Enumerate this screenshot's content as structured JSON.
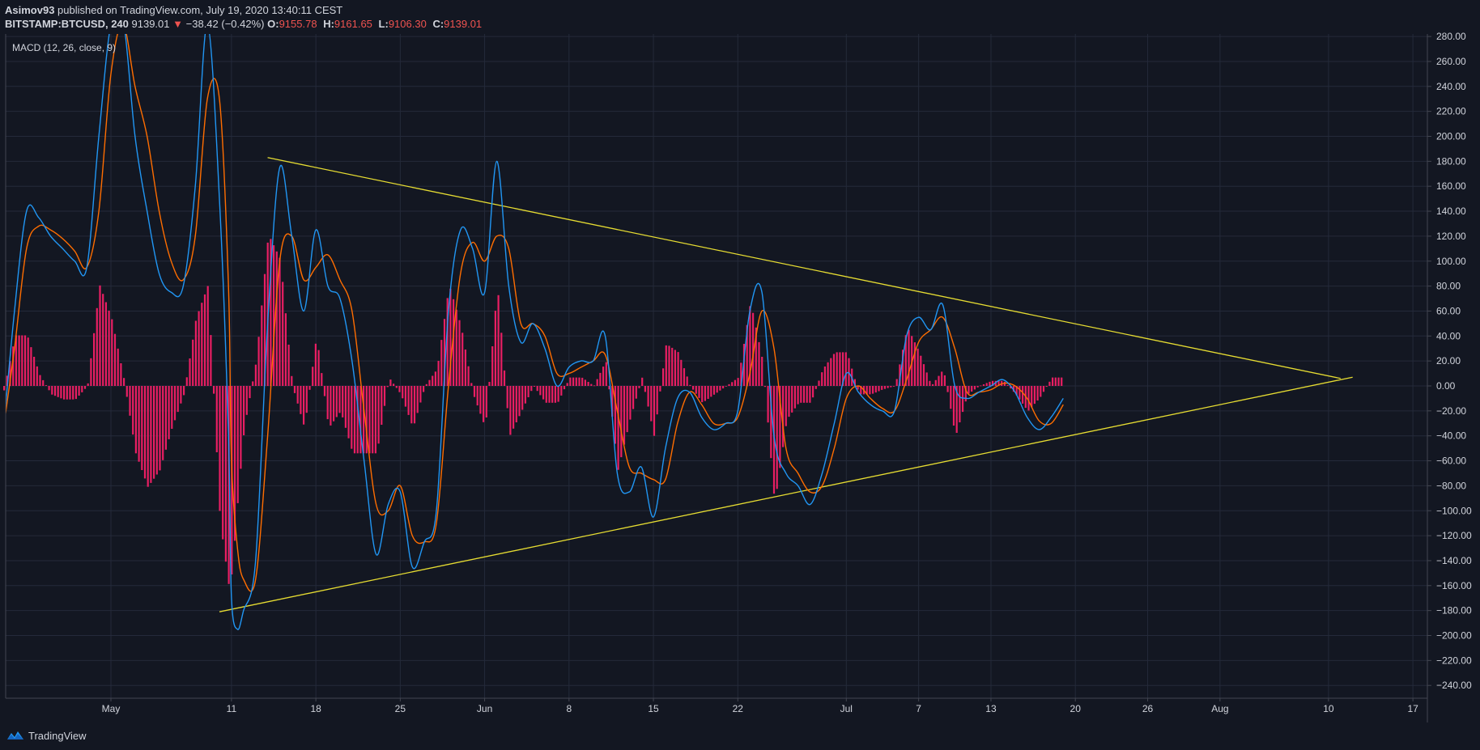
{
  "header": {
    "author": "Asimov93",
    "published": "published on TradingView.com, July 19, 2020 13:40:11 CEST",
    "symbol": "BITSTAMP:BTCUSD, 240",
    "price": "9139.01",
    "change": "−",
    "change_text": "−38.42 (−0.42%)",
    "down_arrow": "▼",
    "o_label": "O:",
    "o_value": "9155.78",
    "h_label": "H:",
    "h_value": "9161.65",
    "l_label": "L:",
    "l_value": "9106.30",
    "c_label": "C:",
    "c_value": "9139.01"
  },
  "indicator": {
    "label": "MACD (12, 26, close, 9)"
  },
  "footer": {
    "brand": "TradingView",
    "logo_icon": "tradingview-logo-icon"
  },
  "colors": {
    "background": "#131722",
    "grid": "#242a3a",
    "macd": "#2196f3",
    "signal": "#ff6d00",
    "histogram": "#e91e63",
    "trendline": "#e6dc32",
    "axis_text": "#d1d4dc"
  },
  "chart_data": {
    "type": "line",
    "title": "MACD (12, 26, close, 9)",
    "xlabel": "",
    "ylabel": "",
    "ylim": [
      -250,
      285
    ],
    "grid": true,
    "x_ticks": [
      {
        "label": "May",
        "date": "2020-05-01"
      },
      {
        "label": "11",
        "date": "2020-05-11"
      },
      {
        "label": "18",
        "date": "2020-05-18"
      },
      {
        "label": "25",
        "date": "2020-05-25"
      },
      {
        "label": "Jun",
        "date": "2020-06-01"
      },
      {
        "label": "8",
        "date": "2020-06-08"
      },
      {
        "label": "15",
        "date": "2020-06-15"
      },
      {
        "label": "22",
        "date": "2020-06-22"
      },
      {
        "label": "Jul",
        "date": "2020-07-01"
      },
      {
        "label": "7",
        "date": "2020-07-07"
      },
      {
        "label": "13",
        "date": "2020-07-13"
      },
      {
        "label": "20",
        "date": "2020-07-20"
      },
      {
        "label": "26",
        "date": "2020-07-26"
      },
      {
        "label": "Aug",
        "date": "2020-08-01"
      },
      {
        "label": "10",
        "date": "2020-08-10"
      },
      {
        "label": "17",
        "date": "2020-08-17"
      }
    ],
    "y_ticks": [
      "280.00",
      "260.00",
      "240.00",
      "220.00",
      "200.00",
      "180.00",
      "160.00",
      "140.00",
      "120.00",
      "100.00",
      "80.00",
      "60.00",
      "40.00",
      "20.00",
      "0.00",
      "−20.00",
      "−40.00",
      "−60.00",
      "−80.00",
      "−100.00",
      "−120.00",
      "−140.00",
      "−160.00",
      "−180.00",
      "−200.00",
      "−220.00",
      "−240.00"
    ],
    "series": [
      {
        "key": "macd",
        "points": [
          [
            "2020-04-22",
            -45
          ],
          [
            "2020-04-23",
            60
          ],
          [
            "2020-04-24",
            140
          ],
          [
            "2020-04-25",
            135
          ],
          [
            "2020-04-26",
            120
          ],
          [
            "2020-04-27",
            110
          ],
          [
            "2020-04-28",
            100
          ],
          [
            "2020-04-29",
            95
          ],
          [
            "2020-04-30",
            200
          ],
          [
            "2020-05-01",
            290
          ],
          [
            "2020-05-02",
            295
          ],
          [
            "2020-05-03",
            200
          ],
          [
            "2020-05-04",
            140
          ],
          [
            "2020-05-05",
            90
          ],
          [
            "2020-05-06",
            75
          ],
          [
            "2020-05-07",
            80
          ],
          [
            "2020-05-08",
            160
          ],
          [
            "2020-05-09",
            290
          ],
          [
            "2020-05-10",
            150
          ],
          [
            "2020-05-10T18:00",
            -40
          ],
          [
            "2020-05-11",
            -170
          ],
          [
            "2020-05-11T12:00",
            -195
          ],
          [
            "2020-05-12",
            -180
          ],
          [
            "2020-05-13",
            -140
          ],
          [
            "2020-05-14",
            50
          ],
          [
            "2020-05-15",
            175
          ],
          [
            "2020-05-16",
            120
          ],
          [
            "2020-05-17",
            60
          ],
          [
            "2020-05-18",
            125
          ],
          [
            "2020-05-19",
            80
          ],
          [
            "2020-05-20",
            70
          ],
          [
            "2020-05-21",
            20
          ],
          [
            "2020-05-22",
            -60
          ],
          [
            "2020-05-23",
            -135
          ],
          [
            "2020-05-24",
            -95
          ],
          [
            "2020-05-25",
            -85
          ],
          [
            "2020-05-26",
            -145
          ],
          [
            "2020-05-27",
            -125
          ],
          [
            "2020-05-28",
            -100
          ],
          [
            "2020-05-29",
            60
          ],
          [
            "2020-05-30",
            125
          ],
          [
            "2020-05-31",
            110
          ],
          [
            "2020-06-01",
            75
          ],
          [
            "2020-06-02",
            180
          ],
          [
            "2020-06-03",
            80
          ],
          [
            "2020-06-04",
            35
          ],
          [
            "2020-06-05",
            50
          ],
          [
            "2020-06-06",
            30
          ],
          [
            "2020-06-07",
            0
          ],
          [
            "2020-06-08",
            15
          ],
          [
            "2020-06-09",
            20
          ],
          [
            "2020-06-10",
            20
          ],
          [
            "2020-06-11",
            40
          ],
          [
            "2020-06-12",
            -70
          ],
          [
            "2020-06-13",
            -85
          ],
          [
            "2020-06-14",
            -65
          ],
          [
            "2020-06-15",
            -105
          ],
          [
            "2020-06-16",
            -50
          ],
          [
            "2020-06-17",
            -10
          ],
          [
            "2020-06-18",
            -5
          ],
          [
            "2020-06-19",
            -25
          ],
          [
            "2020-06-20",
            -35
          ],
          [
            "2020-06-21",
            -30
          ],
          [
            "2020-06-22",
            -20
          ],
          [
            "2020-06-23",
            60
          ],
          [
            "2020-06-24",
            75
          ],
          [
            "2020-06-25",
            -40
          ],
          [
            "2020-06-26",
            -70
          ],
          [
            "2020-06-27",
            -80
          ],
          [
            "2020-06-28",
            -95
          ],
          [
            "2020-06-29",
            -70
          ],
          [
            "2020-06-30",
            -30
          ],
          [
            "2020-07-01",
            10
          ],
          [
            "2020-07-02",
            -5
          ],
          [
            "2020-07-03",
            -15
          ],
          [
            "2020-07-04",
            -20
          ],
          [
            "2020-07-05",
            -20
          ],
          [
            "2020-07-06",
            40
          ],
          [
            "2020-07-07",
            55
          ],
          [
            "2020-07-08",
            45
          ],
          [
            "2020-07-09",
            65
          ],
          [
            "2020-07-10",
            0
          ],
          [
            "2020-07-11",
            -10
          ],
          [
            "2020-07-12",
            -5
          ],
          [
            "2020-07-13",
            0
          ],
          [
            "2020-07-14",
            5
          ],
          [
            "2020-07-15",
            -5
          ],
          [
            "2020-07-16",
            -25
          ],
          [
            "2020-07-17",
            -35
          ],
          [
            "2020-07-18",
            -25
          ],
          [
            "2020-07-19",
            -10
          ]
        ]
      },
      {
        "key": "signal",
        "points": [
          [
            "2020-04-22",
            -40
          ],
          [
            "2020-04-23",
            30
          ],
          [
            "2020-04-24",
            110
          ],
          [
            "2020-04-25",
            128
          ],
          [
            "2020-04-26",
            125
          ],
          [
            "2020-04-27",
            118
          ],
          [
            "2020-04-28",
            108
          ],
          [
            "2020-04-29",
            95
          ],
          [
            "2020-04-30",
            140
          ],
          [
            "2020-05-01",
            250
          ],
          [
            "2020-05-02",
            290
          ],
          [
            "2020-05-03",
            240
          ],
          [
            "2020-05-04",
            200
          ],
          [
            "2020-05-05",
            140
          ],
          [
            "2020-05-06",
            100
          ],
          [
            "2020-05-07",
            85
          ],
          [
            "2020-05-08",
            120
          ],
          [
            "2020-05-09",
            230
          ],
          [
            "2020-05-10",
            230
          ],
          [
            "2020-05-10T18:00",
            80
          ],
          [
            "2020-05-11",
            -60
          ],
          [
            "2020-05-11T12:00",
            -130
          ],
          [
            "2020-05-12",
            -155
          ],
          [
            "2020-05-13",
            -155
          ],
          [
            "2020-05-14",
            -40
          ],
          [
            "2020-05-15",
            100
          ],
          [
            "2020-05-16",
            120
          ],
          [
            "2020-05-17",
            85
          ],
          [
            "2020-05-18",
            95
          ],
          [
            "2020-05-19",
            105
          ],
          [
            "2020-05-20",
            85
          ],
          [
            "2020-05-21",
            60
          ],
          [
            "2020-05-22",
            -20
          ],
          [
            "2020-05-23",
            -95
          ],
          [
            "2020-05-24",
            -100
          ],
          [
            "2020-05-25",
            -80
          ],
          [
            "2020-05-26",
            -120
          ],
          [
            "2020-05-27",
            -125
          ],
          [
            "2020-05-28",
            -110
          ],
          [
            "2020-05-29",
            0
          ],
          [
            "2020-05-30",
            90
          ],
          [
            "2020-05-31",
            115
          ],
          [
            "2020-06-01",
            100
          ],
          [
            "2020-06-02",
            120
          ],
          [
            "2020-06-03",
            110
          ],
          [
            "2020-06-04",
            50
          ],
          [
            "2020-06-05",
            50
          ],
          [
            "2020-06-06",
            40
          ],
          [
            "2020-06-07",
            10
          ],
          [
            "2020-06-08",
            10
          ],
          [
            "2020-06-09",
            15
          ],
          [
            "2020-06-10",
            20
          ],
          [
            "2020-06-11",
            25
          ],
          [
            "2020-06-12",
            -20
          ],
          [
            "2020-06-13",
            -65
          ],
          [
            "2020-06-14",
            -70
          ],
          [
            "2020-06-15",
            -75
          ],
          [
            "2020-06-16",
            -75
          ],
          [
            "2020-06-17",
            -30
          ],
          [
            "2020-06-18",
            -5
          ],
          [
            "2020-06-19",
            -15
          ],
          [
            "2020-06-20",
            -30
          ],
          [
            "2020-06-21",
            -30
          ],
          [
            "2020-06-22",
            -25
          ],
          [
            "2020-06-23",
            10
          ],
          [
            "2020-06-24",
            60
          ],
          [
            "2020-06-25",
            30
          ],
          [
            "2020-06-26",
            -50
          ],
          [
            "2020-06-27",
            -70
          ],
          [
            "2020-06-28",
            -85
          ],
          [
            "2020-06-29",
            -80
          ],
          [
            "2020-06-30",
            -50
          ],
          [
            "2020-07-01",
            -10
          ],
          [
            "2020-07-02",
            0
          ],
          [
            "2020-07-03",
            -10
          ],
          [
            "2020-07-04",
            -18
          ],
          [
            "2020-07-05",
            -20
          ],
          [
            "2020-07-06",
            5
          ],
          [
            "2020-07-07",
            35
          ],
          [
            "2020-07-08",
            45
          ],
          [
            "2020-07-09",
            55
          ],
          [
            "2020-07-10",
            30
          ],
          [
            "2020-07-11",
            -5
          ],
          [
            "2020-07-12",
            -5
          ],
          [
            "2020-07-13",
            -3
          ],
          [
            "2020-07-14",
            2
          ],
          [
            "2020-07-15",
            0
          ],
          [
            "2020-07-16",
            -10
          ],
          [
            "2020-07-17",
            -28
          ],
          [
            "2020-07-18",
            -30
          ],
          [
            "2020-07-19",
            -15
          ]
        ]
      }
    ],
    "trendlines": [
      {
        "from": [
          "2020-05-14",
          183
        ],
        "to": [
          "2020-08-11",
          6
        ]
      },
      {
        "from": [
          "2020-05-10",
          -181
        ],
        "to": [
          "2020-08-12",
          7
        ]
      }
    ]
  }
}
